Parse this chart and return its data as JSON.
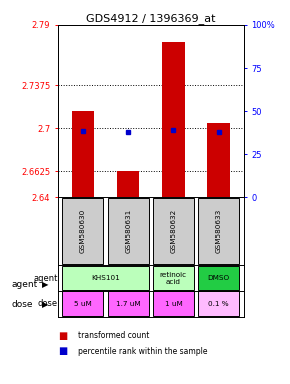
{
  "title": "GDS4912 / 1396369_at",
  "samples": [
    "GSM580630",
    "GSM580631",
    "GSM580632",
    "GSM580633"
  ],
  "bar_values": [
    2.715,
    2.6625,
    2.775,
    2.705
  ],
  "percentile_values": [
    2.698,
    2.697,
    2.699,
    2.697
  ],
  "ylim_left": [
    2.64,
    2.79
  ],
  "yticks_left": [
    2.64,
    2.6625,
    2.7,
    2.7375,
    2.79
  ],
  "ytick_labels_left": [
    "2.64",
    "2.6625",
    "2.7",
    "2.7375",
    "2.79"
  ],
  "ylim_right": [
    0,
    100
  ],
  "yticks_right": [
    0,
    25,
    50,
    75,
    100
  ],
  "ytick_labels_right": [
    "0",
    "25",
    "50",
    "75",
    "100%"
  ],
  "hlines": [
    2.6625,
    2.7,
    2.7375
  ],
  "bar_color": "#cc0000",
  "percentile_color": "#0000cc",
  "bar_width": 0.5,
  "agent_groups": [
    {
      "label": "KHS101",
      "start": 0,
      "end": 1,
      "color": "#bbffbb"
    },
    {
      "label": "retinoic\nacid",
      "start": 2,
      "end": 2,
      "color": "#bbffbb"
    },
    {
      "label": "DMSO",
      "start": 3,
      "end": 3,
      "color": "#22cc44"
    }
  ],
  "dose_labels": [
    "5 uM",
    "1.7 uM",
    "1 uM",
    "0.1 %"
  ],
  "dose_colors": [
    "#ff66ff",
    "#ff66ff",
    "#ff66ff",
    "#ffbbff"
  ],
  "sample_bg_color": "#cccccc",
  "legend_bar_color": "#cc0000",
  "legend_pct_color": "#0000cc"
}
